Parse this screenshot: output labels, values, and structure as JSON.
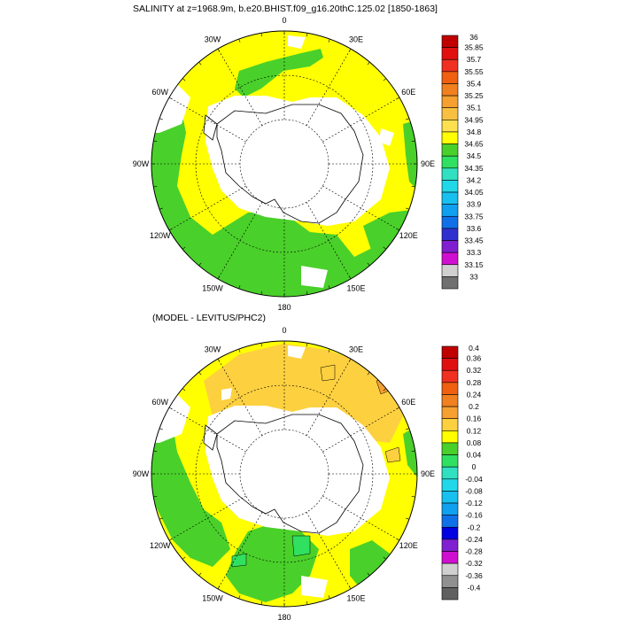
{
  "top_panel": {
    "title": "SALINITY at z=1968.9m, b.e20.BHIST.f09_g16.20thC.125.02 [1850-1863]",
    "lon_labels": [
      "0",
      "30E",
      "60E",
      "90E",
      "120E",
      "150E",
      "180",
      "150W",
      "120W",
      "90W",
      "60W",
      "30W"
    ],
    "colorbar": {
      "labels": [
        "36",
        "35.85",
        "35.7",
        "35.55",
        "35.4",
        "35.25",
        "35.1",
        "34.95",
        "34.8",
        "34.65",
        "34.5",
        "34.35",
        "34.2",
        "34.05",
        "33.9",
        "33.75",
        "33.6",
        "33.45",
        "33.3",
        "33.15",
        "33"
      ],
      "colors": [
        "#c00000",
        "#e01010",
        "#f03020",
        "#f06010",
        "#f08020",
        "#f5a030",
        "#f8c040",
        "#fde050",
        "#ffff00",
        "#4ad02a",
        "#30e060",
        "#30e0c0",
        "#20d8e8",
        "#18c0f0",
        "#10a0f0",
        "#1070e8",
        "#3030d0",
        "#8020d0",
        "#d010d0",
        "#d0d0d0",
        "#707070"
      ]
    }
  },
  "bottom_panel": {
    "title": "(MODEL - LEVITUS/PHC2)",
    "lon_labels": [
      "0",
      "30E",
      "60E",
      "90E",
      "120E",
      "150E",
      "180",
      "150W",
      "120W",
      "90W",
      "60W",
      "30W"
    ],
    "colorbar": {
      "labels": [
        "0.4",
        "0.36",
        "0.32",
        "0.28",
        "0.24",
        "0.2",
        "0.16",
        "0.12",
        "0.08",
        "0.04",
        "0",
        "-0.04",
        "-0.08",
        "-0.12",
        "-0.16",
        "-0.2",
        "-0.24",
        "-0.28",
        "-0.32",
        "-0.36",
        "-0.4"
      ],
      "colors": [
        "#c00000",
        "#e01010",
        "#f03020",
        "#f06010",
        "#f08020",
        "#f5a030",
        "#fdd040",
        "#ffff00",
        "#4ad02a",
        "#30e060",
        "#30e0c0",
        "#20d8e8",
        "#18c0f0",
        "#10a0f0",
        "#1070e8",
        "#0000e0",
        "#8020d0",
        "#d010d0",
        "#d0d0d0",
        "#909090",
        "#606060"
      ]
    }
  }
}
